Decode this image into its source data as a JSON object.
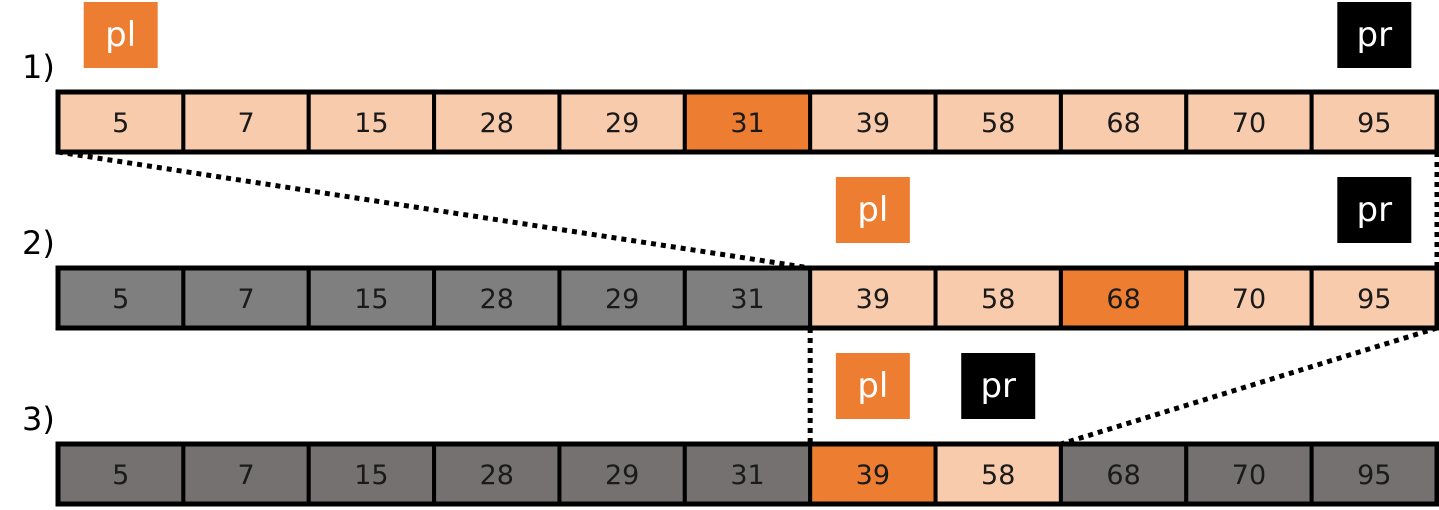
{
  "colors": {
    "light": "#f8cbad",
    "highlight": "#ed7d31",
    "excluded_mid": "#7f7f7f",
    "excluded_final": "#767171",
    "pl_tag": "#ed7d31",
    "pr_tag": "#000000",
    "border": "#000000"
  },
  "array_values": [
    "5",
    "7",
    "15",
    "28",
    "29",
    "31",
    "39",
    "58",
    "68",
    "70",
    "95"
  ],
  "steps": [
    {
      "label": "1)",
      "cell_states": [
        "light",
        "light",
        "light",
        "light",
        "light",
        "highlight",
        "light",
        "light",
        "light",
        "light",
        "light"
      ],
      "pl": {
        "text": "pl",
        "index": 0
      },
      "pr": {
        "text": "pr",
        "index": 10
      }
    },
    {
      "label": "2)",
      "cell_states": [
        "excluded_mid",
        "excluded_mid",
        "excluded_mid",
        "excluded_mid",
        "excluded_mid",
        "excluded_mid",
        "light",
        "light",
        "highlight",
        "light",
        "light"
      ],
      "pl": {
        "text": "pl",
        "index": 6
      },
      "pr": {
        "text": "pr",
        "index": 10
      }
    },
    {
      "label": "3)",
      "cell_states": [
        "excluded_final",
        "excluded_final",
        "excluded_final",
        "excluded_final",
        "excluded_final",
        "excluded_final",
        "highlight",
        "light",
        "excluded_final",
        "excluded_final",
        "excluded_final"
      ],
      "pl": {
        "text": "pl",
        "index": 6
      },
      "pr": {
        "text": "pr",
        "index": 7
      }
    }
  ]
}
